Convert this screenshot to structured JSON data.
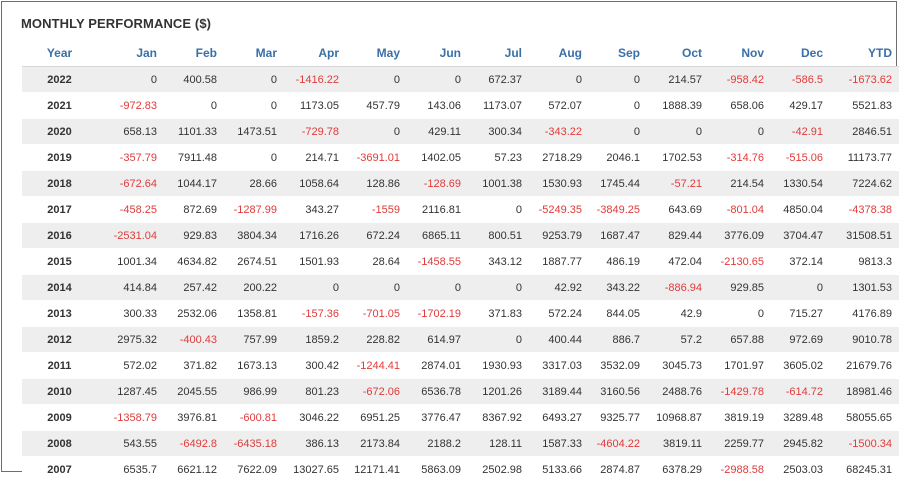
{
  "title": "MONTHLY PERFORMANCE ($)",
  "columns": [
    "Year",
    "Jan",
    "Feb",
    "Mar",
    "Apr",
    "May",
    "Jun",
    "Jul",
    "Aug",
    "Sep",
    "Oct",
    "Nov",
    "Dec",
    "YTD"
  ],
  "rows": [
    [
      "2022",
      "0",
      "400.58",
      "0",
      "-1416.22",
      "0",
      "0",
      "672.37",
      "0",
      "0",
      "214.57",
      "-958.42",
      "-586.5",
      "-1673.62"
    ],
    [
      "2021",
      "-972.83",
      "0",
      "0",
      "1173.05",
      "457.79",
      "143.06",
      "1173.07",
      "572.07",
      "0",
      "1888.39",
      "658.06",
      "429.17",
      "5521.83"
    ],
    [
      "2020",
      "658.13",
      "1101.33",
      "1473.51",
      "-729.78",
      "0",
      "429.11",
      "300.34",
      "-343.22",
      "0",
      "0",
      "0",
      "-42.91",
      "2846.51"
    ],
    [
      "2019",
      "-357.79",
      "7911.48",
      "0",
      "214.71",
      "-3691.01",
      "1402.05",
      "57.23",
      "2718.29",
      "2046.1",
      "1702.53",
      "-314.76",
      "-515.06",
      "11173.77"
    ],
    [
      "2018",
      "-672.64",
      "1044.17",
      "28.66",
      "1058.64",
      "128.86",
      "-128.69",
      "1001.38",
      "1530.93",
      "1745.44",
      "-57.21",
      "214.54",
      "1330.54",
      "7224.62"
    ],
    [
      "2017",
      "-458.25",
      "872.69",
      "-1287.99",
      "343.27",
      "-1559",
      "2116.81",
      "0",
      "-5249.35",
      "-3849.25",
      "643.69",
      "-801.04",
      "4850.04",
      "-4378.38"
    ],
    [
      "2016",
      "-2531.04",
      "929.83",
      "3804.34",
      "1716.26",
      "672.24",
      "6865.11",
      "800.51",
      "9253.79",
      "1687.47",
      "829.44",
      "3776.09",
      "3704.47",
      "31508.51"
    ],
    [
      "2015",
      "1001.34",
      "4634.82",
      "2674.51",
      "1501.93",
      "28.64",
      "-1458.55",
      "343.12",
      "1887.77",
      "486.19",
      "472.04",
      "-2130.65",
      "372.14",
      "9813.3"
    ],
    [
      "2014",
      "414.84",
      "257.42",
      "200.22",
      "0",
      "0",
      "0",
      "0",
      "42.92",
      "343.22",
      "-886.94",
      "929.85",
      "0",
      "1301.53"
    ],
    [
      "2013",
      "300.33",
      "2532.06",
      "1358.81",
      "-157.36",
      "-701.05",
      "-1702.19",
      "371.83",
      "572.24",
      "844.05",
      "42.9",
      "0",
      "715.27",
      "4176.89"
    ],
    [
      "2012",
      "2975.32",
      "-400.43",
      "757.99",
      "1859.2",
      "228.82",
      "614.97",
      "0",
      "400.44",
      "886.7",
      "57.2",
      "657.88",
      "972.69",
      "9010.78"
    ],
    [
      "2011",
      "572.02",
      "371.82",
      "1673.13",
      "300.42",
      "-1244.41",
      "2874.01",
      "1930.93",
      "3317.03",
      "3532.09",
      "3045.73",
      "1701.97",
      "3605.02",
      "21679.76"
    ],
    [
      "2010",
      "1287.45",
      "2045.55",
      "986.99",
      "801.23",
      "-672.06",
      "6536.78",
      "1201.26",
      "3189.44",
      "3160.56",
      "2488.76",
      "-1429.78",
      "-614.72",
      "18981.46"
    ],
    [
      "2009",
      "-1358.79",
      "3976.81",
      "-600.81",
      "3046.22",
      "6951.25",
      "3776.47",
      "8367.92",
      "6493.27",
      "9325.77",
      "10968.87",
      "3819.19",
      "3289.48",
      "58055.65"
    ],
    [
      "2008",
      "543.55",
      "-6492.8",
      "-6435.18",
      "386.13",
      "2173.84",
      "2188.2",
      "128.11",
      "1587.33",
      "-4604.22",
      "3819.11",
      "2259.77",
      "2945.82",
      "-1500.34"
    ],
    [
      "2007",
      "6535.7",
      "6621.12",
      "7622.09",
      "13027.65",
      "12171.41",
      "5863.09",
      "2502.98",
      "5133.66",
      "2874.87",
      "6378.29",
      "-2988.58",
      "2503.03",
      "68245.31"
    ]
  ],
  "colors": {
    "header_text": "#3a6fa8",
    "negative": "#e03b3b",
    "row_stripe": "#eeeeee",
    "text": "#333333"
  }
}
